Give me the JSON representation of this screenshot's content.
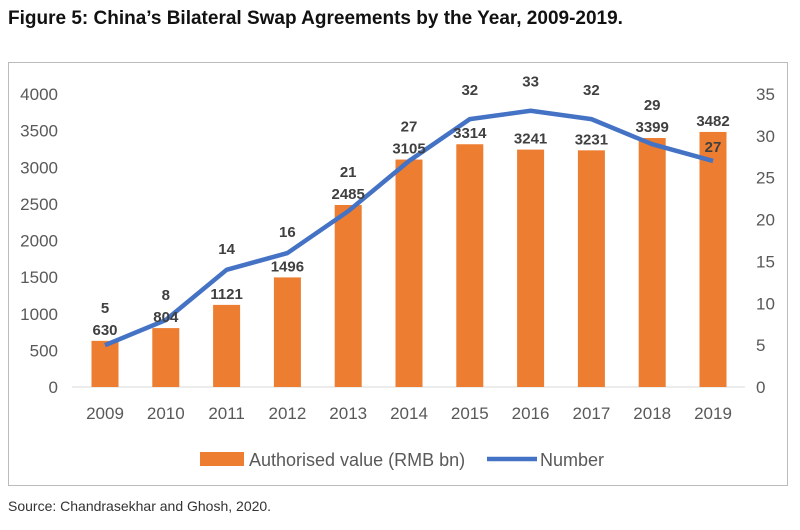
{
  "title": "Figure 5: China’s Bilateral Swap Agreements by the Year, 2009-2019.",
  "source": "Source: Chandrasekhar and Ghosh, 2020.",
  "chart_data": {
    "type": "bar+line",
    "categories": [
      "2009",
      "2010",
      "2011",
      "2012",
      "2013",
      "2014",
      "2015",
      "2016",
      "2017",
      "2018",
      "2019"
    ],
    "series": [
      {
        "name": "Authorised value (RMB bn)",
        "type": "bar",
        "axis": "left",
        "color": "#ED7D31",
        "values": [
          630,
          804,
          1121,
          1496,
          2485,
          3105,
          3314,
          3241,
          3231,
          3399,
          3482
        ]
      },
      {
        "name": "Number",
        "type": "line",
        "axis": "right",
        "color": "#4472C4",
        "values": [
          5,
          8,
          14,
          16,
          21,
          27,
          32,
          33,
          32,
          29,
          27
        ]
      }
    ],
    "ylim_left": [
      0,
      4000
    ],
    "yticks_left": [
      0,
      500,
      1000,
      1500,
      2000,
      2500,
      3000,
      3500,
      4000
    ],
    "ylim_right": [
      0,
      35
    ],
    "yticks_right": [
      0,
      5,
      10,
      15,
      20,
      25,
      30,
      35
    ],
    "grid": false,
    "legend": "bottom"
  }
}
